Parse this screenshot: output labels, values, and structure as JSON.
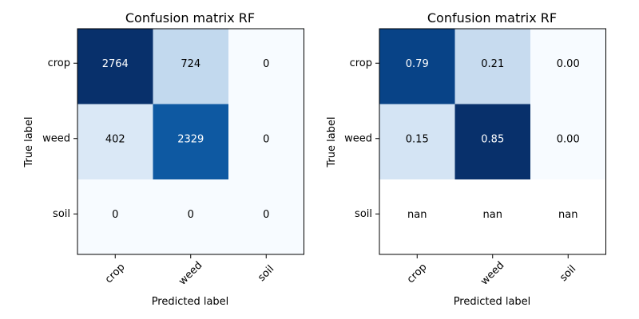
{
  "chart_data": [
    {
      "type": "heatmap",
      "title": "Confusion matrix RF",
      "xlabel": "Predicted label",
      "ylabel": "True label",
      "x_categories": [
        "crop",
        "weed",
        "soil"
      ],
      "y_categories": [
        "crop",
        "weed",
        "soil"
      ],
      "values": [
        [
          2764,
          724,
          0
        ],
        [
          402,
          2329,
          0
        ],
        [
          0,
          0,
          0
        ]
      ],
      "cell_labels": [
        [
          "2764",
          "724",
          "0"
        ],
        [
          "402",
          "2329",
          "0"
        ],
        [
          "0",
          "0",
          "0"
        ]
      ],
      "colormap": "Blues",
      "value_range": [
        0,
        2764
      ]
    },
    {
      "type": "heatmap",
      "title": "Confusion matrix RF",
      "xlabel": "Predicted label",
      "ylabel": "True label",
      "x_categories": [
        "crop",
        "weed",
        "soil"
      ],
      "y_categories": [
        "crop",
        "weed",
        "soil"
      ],
      "values": [
        [
          0.79,
          0.21,
          0.0
        ],
        [
          0.15,
          0.85,
          0.0
        ],
        [
          null,
          null,
          null
        ]
      ],
      "cell_labels": [
        [
          "0.79",
          "0.21",
          "0.00"
        ],
        [
          "0.15",
          "0.85",
          "0.00"
        ],
        [
          "nan",
          "nan",
          "nan"
        ]
      ],
      "colormap": "Blues",
      "value_range": [
        0,
        0.85
      ]
    }
  ]
}
